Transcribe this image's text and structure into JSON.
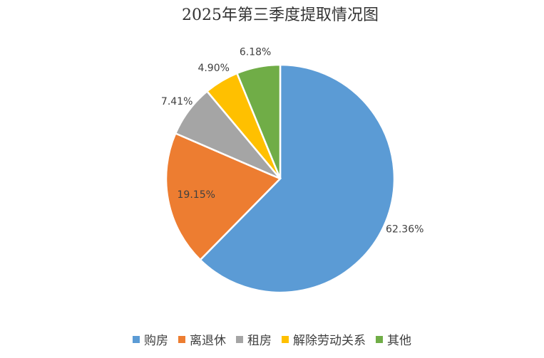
{
  "chart_data": {
    "type": "pie",
    "title": "2025年第三季度提取情况图",
    "categories": [
      "购房",
      "离退休",
      "租房",
      "解除劳动关系",
      "其他"
    ],
    "values": [
      62.36,
      19.15,
      7.41,
      4.9,
      6.18
    ],
    "value_labels": [
      "62.36%",
      "19.15%",
      "7.41%",
      "4.90%",
      "6.18%"
    ],
    "colors": [
      "#5b9bd5",
      "#ed7d31",
      "#a5a5a5",
      "#ffc000",
      "#70ad47"
    ],
    "legend": "bottom"
  }
}
